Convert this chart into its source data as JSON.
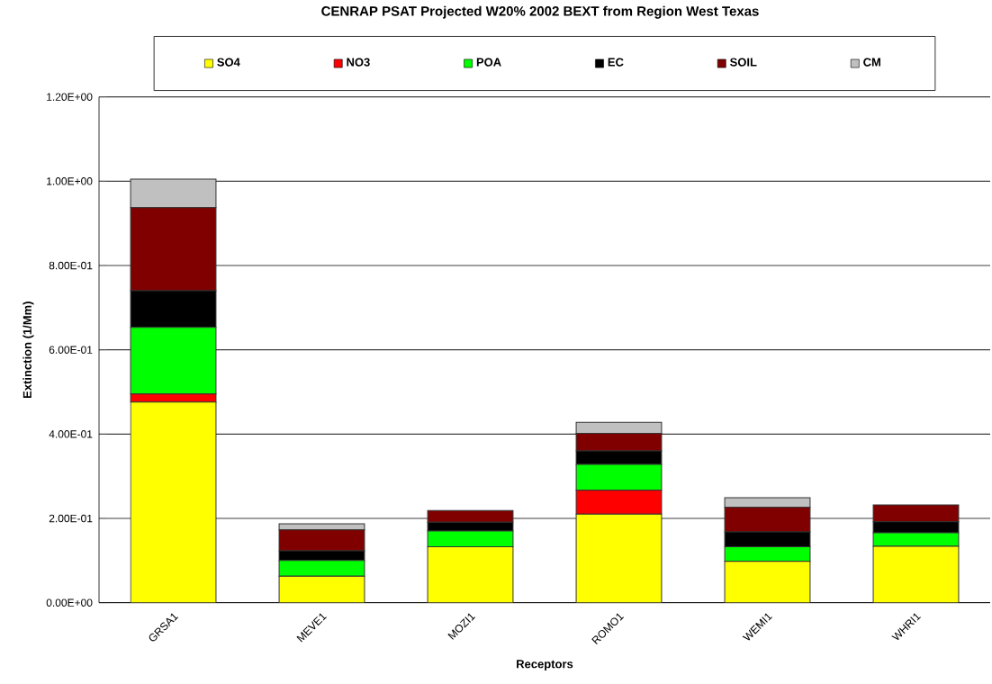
{
  "chart_data": {
    "type": "bar",
    "stacked": true,
    "title": "CENRAP PSAT Projected W20% 2002 BEXT from Region West Texas",
    "xlabel": "Receptors",
    "ylabel": "Extinction (1/Mm)",
    "categories": [
      "GRSA1",
      "MEVE1",
      "MOZI1",
      "ROMO1",
      "WEMI1",
      "WHRI1"
    ],
    "series": [
      {
        "name": "SO4",
        "color": "#ffff00",
        "values": [
          0.476,
          0.063,
          0.133,
          0.21,
          0.098,
          0.134
        ]
      },
      {
        "name": "NO3",
        "color": "#ff0000",
        "values": [
          0.019,
          0,
          0,
          0.057,
          0,
          0
        ]
      },
      {
        "name": "POA",
        "color": "#00ff00",
        "values": [
          0.158,
          0.037,
          0.037,
          0.061,
          0.035,
          0.032
        ]
      },
      {
        "name": "EC",
        "color": "#000000",
        "values": [
          0.087,
          0.023,
          0.021,
          0.032,
          0.035,
          0.026
        ]
      },
      {
        "name": "SOIL",
        "color": "#800000",
        "values": [
          0.197,
          0.05,
          0.028,
          0.042,
          0.058,
          0.04
        ]
      },
      {
        "name": "CM",
        "color": "#c0c0c0",
        "values": [
          0.068,
          0.014,
          0,
          0.026,
          0.023,
          0
        ]
      }
    ],
    "ylim": [
      0,
      1.2
    ],
    "yticks": [
      {
        "value": 0,
        "label": "0.00E+00"
      },
      {
        "value": 0.2,
        "label": "2.00E-01"
      },
      {
        "value": 0.4,
        "label": "4.00E-01"
      },
      {
        "value": 0.6,
        "label": "6.00E-01"
      },
      {
        "value": 0.8,
        "label": "8.00E-01"
      },
      {
        "value": 1.0,
        "label": "1.00E+00"
      },
      {
        "value": 1.2,
        "label": "1.20E+00"
      }
    ],
    "grid": "y",
    "legend": "top"
  }
}
